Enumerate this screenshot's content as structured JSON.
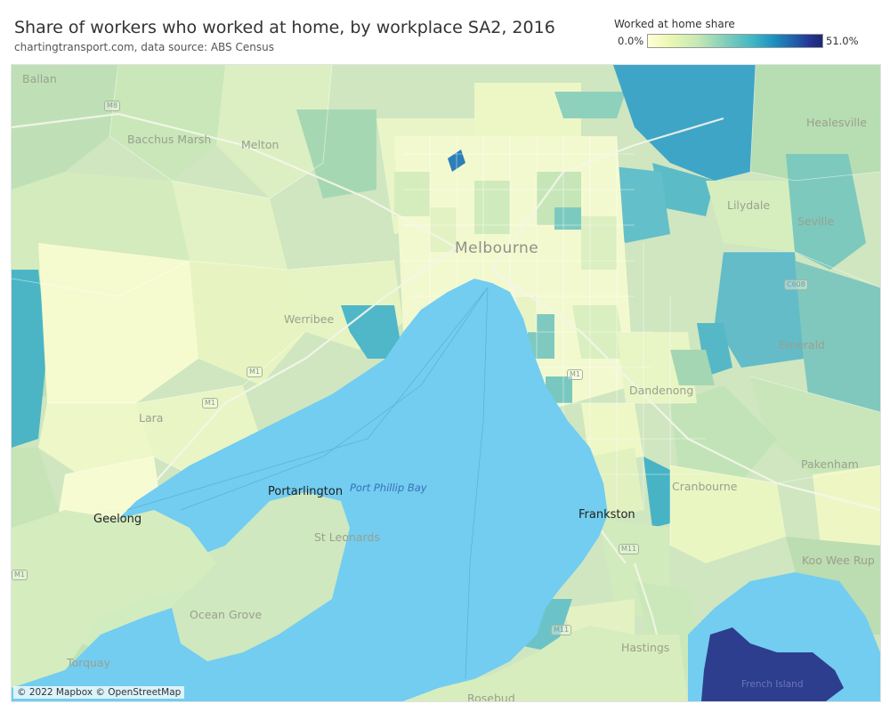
{
  "header": {
    "title": "Share of workers who worked at home, by workplace SA2, 2016",
    "subtitle": "chartingtransport.com, data source: ABS Census"
  },
  "legend": {
    "title": "Worked at home share",
    "min": "0.0%",
    "max": "51.0%",
    "colors": [
      "#ffffd9",
      "#edf8b1",
      "#c7e9b4",
      "#7fcdbb",
      "#41b6c4",
      "#1d91c0",
      "#225ea8",
      "#253494"
    ]
  },
  "map": {
    "water_color": "#72cdf0",
    "labels": {
      "ballan": "Ballan",
      "bacchus_marsh": "Bacchus Marsh",
      "melton": "Melton",
      "healesville": "Healesville",
      "lilydale": "Lilydale",
      "seville": "Seville",
      "melbourne": "Melbourne",
      "werribee": "Werribee",
      "emerald": "Emerald",
      "dandenong": "Dandenong",
      "lara": "Lara",
      "pakenham": "Pakenham",
      "port_phillip_bay": "Port Phillip Bay",
      "portarlington": "Portarlington",
      "cranbourne": "Cranbourne",
      "geelong": "Geelong",
      "frankston": "Frankston",
      "st_leonards": "St Leonards",
      "koo_wee_rup": "Koo Wee Rup",
      "ocean_grove": "Ocean Grove",
      "hastings": "Hastings",
      "torquay": "Torquay",
      "french_island": "French Island",
      "rosebud": "Rosebud"
    },
    "road_shields": {
      "m8": "M8",
      "m1_west": "M1",
      "m1_geelong": "M1",
      "m1_south": "M1",
      "m11": "M11",
      "m11_south": "M11",
      "m1_far_west": "M1",
      "c608": "C608"
    },
    "attribution": "© 2022 Mapbox © OpenStreetMap"
  }
}
